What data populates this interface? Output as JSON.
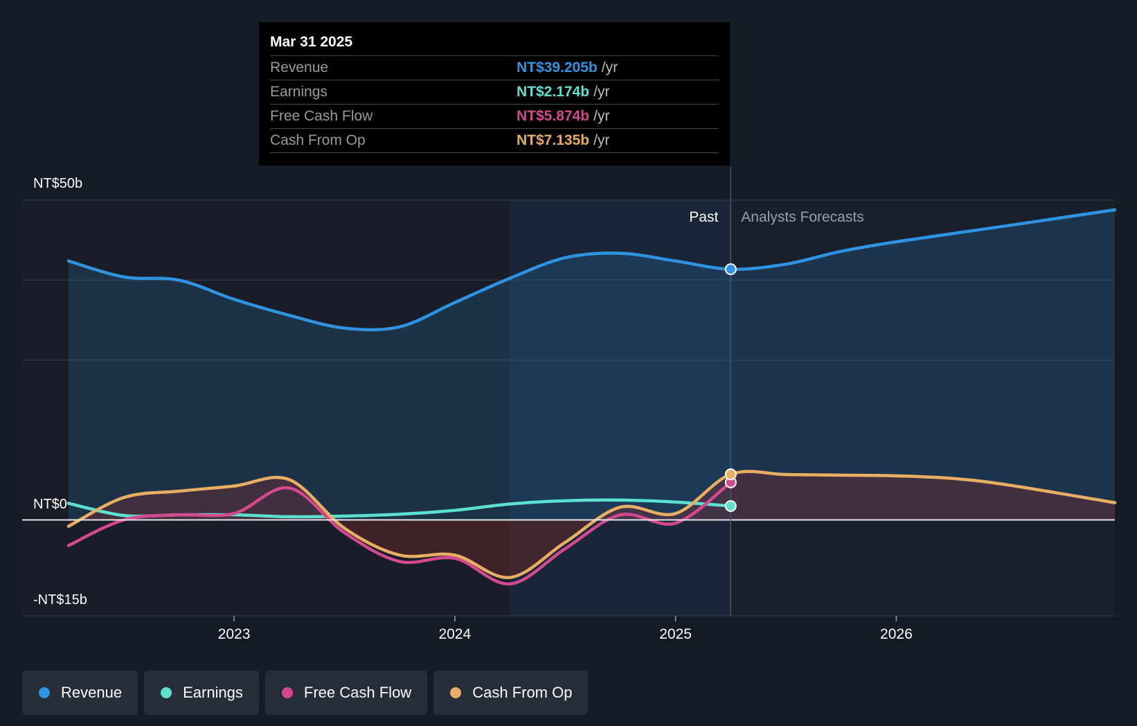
{
  "tooltip": {
    "date": "Mar 31 2025",
    "rows": [
      {
        "label": "Revenue",
        "value": "NT$39.205b",
        "unit": "/yr",
        "color": "#2e93e0"
      },
      {
        "label": "Earnings",
        "value": "NT$2.174b",
        "unit": "/yr",
        "color": "#5ce0d2"
      },
      {
        "label": "Free Cash Flow",
        "value": "NT$5.874b",
        "unit": "/yr",
        "color": "#d3488e"
      },
      {
        "label": "Cash From Op",
        "value": "NT$7.135b",
        "unit": "/yr",
        "color": "#e8ae62"
      }
    ]
  },
  "legend": [
    {
      "label": "Revenue",
      "color": "#2e93e0"
    },
    {
      "label": "Earnings",
      "color": "#5ce0d2"
    },
    {
      "label": "Free Cash Flow",
      "color": "#d3488e"
    },
    {
      "label": "Cash From Op",
      "color": "#e8ae62"
    }
  ],
  "chart_data": {
    "type": "line",
    "title": "",
    "xlabel": "",
    "ylabel": "",
    "y_axis_labels": {
      "top": "NT$50b",
      "zero": "NT$0",
      "bottom": "-NT$15b"
    },
    "x_ticks": [
      "2023",
      "2024",
      "2025",
      "2026"
    ],
    "x_tick_values": [
      2023.0,
      2024.0,
      2025.0,
      2026.0
    ],
    "xlim": [
      2022.04,
      2026.99
    ],
    "ylim": [
      -15,
      50
    ],
    "past_label": "Past",
    "forecast_label": "Analysts Forecasts",
    "forecast_start": 2025.25,
    "highlight_range": [
      2024.25,
      2025.25
    ],
    "series": [
      {
        "name": "Revenue",
        "color": "#2e93e0",
        "fill": true,
        "x": [
          2022.25,
          2022.5,
          2022.75,
          2023.0,
          2023.25,
          2023.5,
          2023.75,
          2024.0,
          2024.25,
          2024.5,
          2024.75,
          2025.0,
          2025.25,
          2025.5,
          2025.75,
          2026.0,
          2026.5,
          2026.99
        ],
        "y": [
          40.5,
          38.0,
          37.5,
          34.5,
          32.0,
          30.0,
          30.2,
          34.0,
          37.8,
          41.0,
          41.7,
          40.5,
          39.205,
          40.0,
          42.0,
          43.5,
          46.0,
          48.5
        ]
      },
      {
        "name": "Earnings",
        "color": "#5ce0d2",
        "x": [
          2022.25,
          2022.5,
          2022.75,
          2023.0,
          2023.25,
          2023.5,
          2023.75,
          2024.0,
          2024.25,
          2024.5,
          2024.75,
          2025.0,
          2025.25
        ],
        "y": [
          2.6,
          0.7,
          0.8,
          0.8,
          0.5,
          0.6,
          0.9,
          1.5,
          2.5,
          3.0,
          3.1,
          2.8,
          2.174
        ]
      },
      {
        "name": "Free Cash Flow",
        "color": "#d3488e",
        "x": [
          2022.25,
          2022.5,
          2022.75,
          2023.0,
          2023.25,
          2023.5,
          2023.75,
          2024.0,
          2024.25,
          2024.5,
          2024.75,
          2025.0,
          2025.25
        ],
        "y": [
          -4.0,
          0.0,
          0.8,
          1.0,
          5.0,
          -2.0,
          -6.5,
          -6.0,
          -10.0,
          -4.5,
          0.8,
          -0.5,
          5.874
        ]
      },
      {
        "name": "Cash From Op",
        "color": "#e8ae62",
        "x": [
          2022.25,
          2022.5,
          2022.75,
          2023.0,
          2023.25,
          2023.5,
          2023.75,
          2024.0,
          2024.25,
          2024.5,
          2024.75,
          2025.0,
          2025.25,
          2025.5,
          2025.75,
          2026.0,
          2026.25,
          2026.5,
          2026.99
        ],
        "y": [
          -1.0,
          3.5,
          4.5,
          5.3,
          6.3,
          -1.3,
          -5.5,
          -5.5,
          -9.0,
          -3.5,
          2.0,
          1.0,
          7.135,
          7.1,
          7.0,
          6.9,
          6.5,
          5.5,
          2.7
        ]
      }
    ]
  }
}
